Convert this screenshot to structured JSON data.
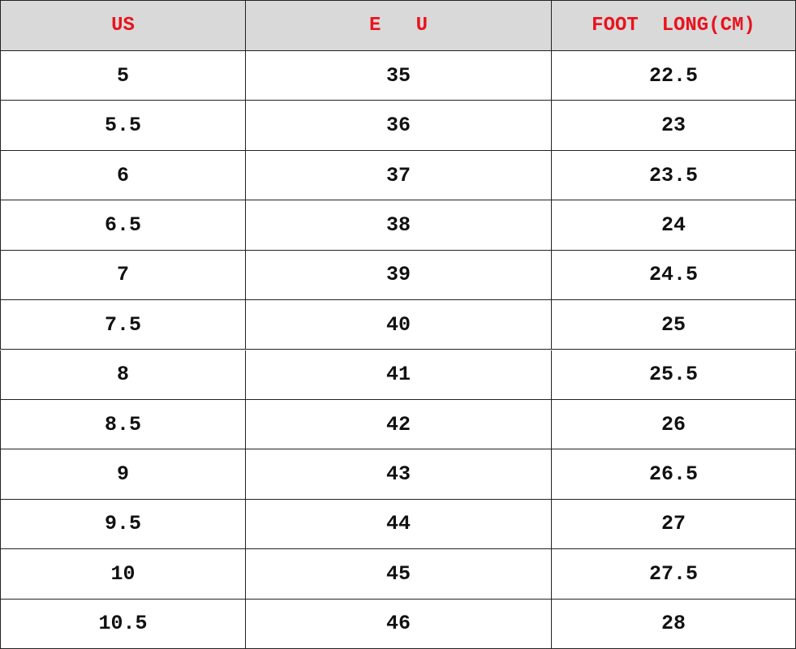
{
  "table": {
    "header": [
      "US",
      "E   U",
      "FOOT  LONG(CM)"
    ],
    "rows": [
      [
        "5",
        "35",
        "22.5"
      ],
      [
        "5.5",
        "36",
        "23"
      ],
      [
        "6",
        "37",
        "23.5"
      ],
      [
        "6.5",
        "38",
        "24"
      ],
      [
        "7",
        "39",
        "24.5"
      ],
      [
        "7.5",
        "40",
        "25"
      ],
      [
        "8",
        "41",
        "25.5"
      ],
      [
        "8.5",
        "42",
        "26"
      ],
      [
        "9",
        "43",
        "26.5"
      ],
      [
        "9.5",
        "44",
        "27"
      ],
      [
        "10",
        "45",
        "27.5"
      ],
      [
        "10.5",
        "46",
        "28"
      ]
    ]
  }
}
